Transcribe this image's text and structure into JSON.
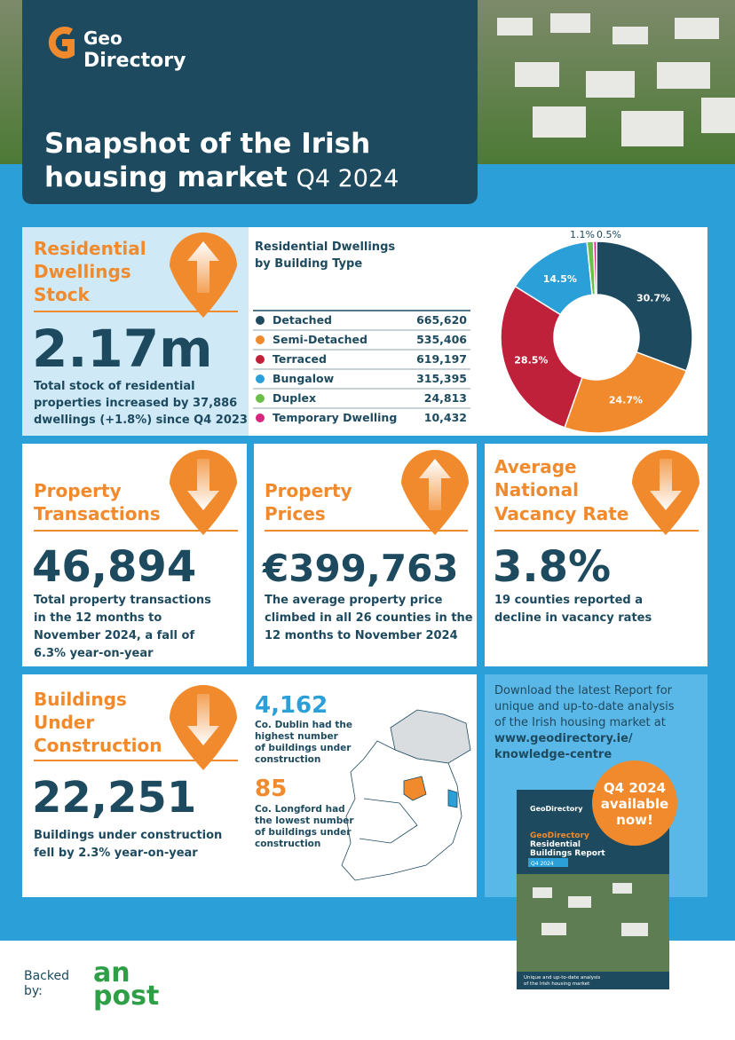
{
  "header": {
    "logo_top": "Geo",
    "logo_bottom": "Directory",
    "title_line1": "Snapshot of the Irish",
    "title_line2": "housing market",
    "title_period": "Q4 2024"
  },
  "stock": {
    "heading": [
      "Residential",
      "Dwellings",
      "Stock"
    ],
    "value": "2.17m",
    "description": [
      "Total stock of residential",
      "properties increased by 37,886",
      "dwellings (+1.8%) since Q4 2023"
    ]
  },
  "dwellings": {
    "title": [
      "Residential Dwellings",
      "by Building Type"
    ],
    "categories": [
      "Detached",
      "Semi-Detached",
      "Terraced",
      "Bungalow",
      "Duplex",
      "Temporary Dwelling"
    ],
    "counts": [
      "665,620",
      "535,406",
      "619,197",
      "315,395",
      "24,813",
      "10,432"
    ],
    "colors": [
      "#1d4a5e",
      "#f08a2c",
      "#c0213a",
      "#2a9fd8",
      "#6cbf4a",
      "#d6267e"
    ],
    "donut": {
      "type": "pie",
      "values": [
        30.7,
        24.7,
        28.5,
        14.5,
        1.1,
        0.5
      ],
      "value_labels": [
        "30.7%",
        "24.7%",
        "28.5%",
        "14.5%",
        "1.1%",
        "0.5%"
      ]
    }
  },
  "transactions": {
    "heading": [
      "Property",
      "Transactions"
    ],
    "value": "46,894",
    "description": [
      "Total property transactions",
      "in the 12 months to",
      "November 2024, a fall of",
      "6.3% year-on-year"
    ]
  },
  "prices": {
    "heading": [
      "Property",
      "Prices"
    ],
    "value": "€399,763",
    "description": [
      "The average property price",
      "climbed in all 26 counties in the",
      "12 months to November 2024"
    ]
  },
  "vacancy": {
    "heading": [
      "Average",
      "National",
      "Vacancy Rate"
    ],
    "value": "3.8%",
    "description": [
      "19 counties reported a",
      "decline in vacancy rates"
    ]
  },
  "construction": {
    "heading": [
      "Buildings",
      "Under",
      "Construction"
    ],
    "value": "22,251",
    "description": [
      "Buildings under construction",
      "fell by 2.3% year-on-year"
    ],
    "highest_value": "4,162",
    "highest_text": [
      "Co. Dublin had the",
      "highest number",
      "of buildings under",
      "construction"
    ],
    "lowest_value": "85",
    "lowest_text": [
      "Co. Longford had",
      "the lowest number",
      "of buildings under",
      "construction"
    ]
  },
  "download": {
    "lines": [
      "Download the latest Report for",
      "unique and up-to-date analysis",
      "of the Irish housing market at"
    ],
    "link": [
      "www.geodirectory.ie/",
      "knowledge-centre"
    ]
  },
  "report_cover": {
    "logo": "GeoDirectory",
    "title": [
      "GeoDirectory",
      "Residential",
      "Buildings Report"
    ],
    "period": "Q4 2024",
    "tagline": [
      "Unique and up-to-date analysis",
      "of the Irish housing market"
    ]
  },
  "badge": [
    "Q4 2024",
    "available",
    "now!"
  ],
  "footer": {
    "backed_by": [
      "Backed",
      "by:"
    ],
    "sponsor": [
      "an",
      "post"
    ]
  }
}
